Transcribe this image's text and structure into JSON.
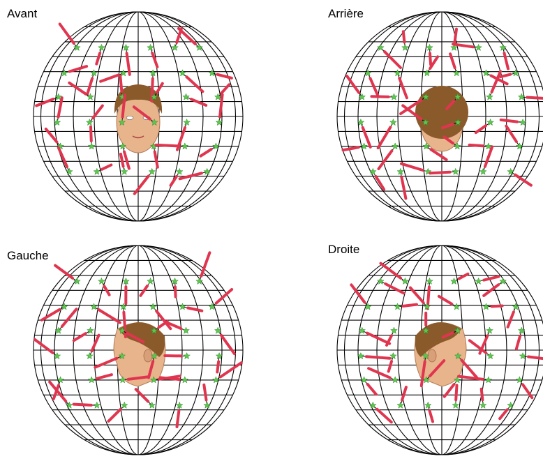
{
  "panels": [
    {
      "title": "Avant",
      "view": "front"
    },
    {
      "title": "Arrière",
      "view": "back"
    },
    {
      "title": "Gauche",
      "view": "left"
    },
    {
      "title": "Droite",
      "view": "right"
    }
  ],
  "colors": {
    "grid": "#000000",
    "marker": "#5fc64f",
    "stroke": "#e0354f",
    "hair": "#8a5a2b",
    "skin": "#e8b48c"
  },
  "icons": {
    "marker": "green-star-icon",
    "head": "head-illustration"
  }
}
